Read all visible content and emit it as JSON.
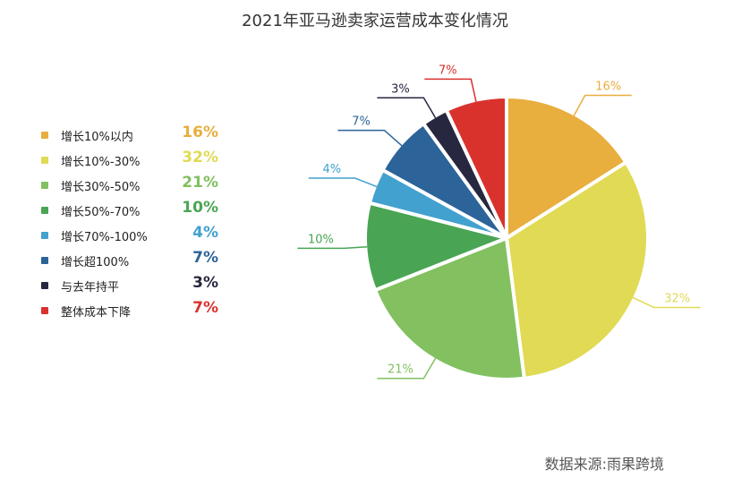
{
  "chart_data": {
    "type": "pie",
    "title": "2021年亚马逊卖家运营成本变化情况",
    "slices": [
      {
        "label": "增长10%以内",
        "value": 16,
        "display": "16%",
        "color": "#E8AE3E"
      },
      {
        "label": "增长10%-30%",
        "value": 32,
        "display": "32%",
        "color": "#E0DA55"
      },
      {
        "label": "增长30%-50%",
        "value": 21,
        "display": "21%",
        "color": "#82C060"
      },
      {
        "label": "增长50%-70%",
        "value": 10,
        "display": "10%",
        "color": "#49A553"
      },
      {
        "label": "增长70%-100%",
        "value": 4,
        "display": "4%",
        "color": "#42A1CF"
      },
      {
        "label": "增长超100%",
        "value": 7,
        "display": "7%",
        "color": "#2C6398"
      },
      {
        "label": "与去年持平",
        "value": 3,
        "display": "3%",
        "color": "#27283F"
      },
      {
        "label": "整体成本下降",
        "value": 7,
        "display": "7%",
        "color": "#D9322D"
      }
    ],
    "legend_position": "left"
  },
  "source": "数据来源:雨果跨境"
}
